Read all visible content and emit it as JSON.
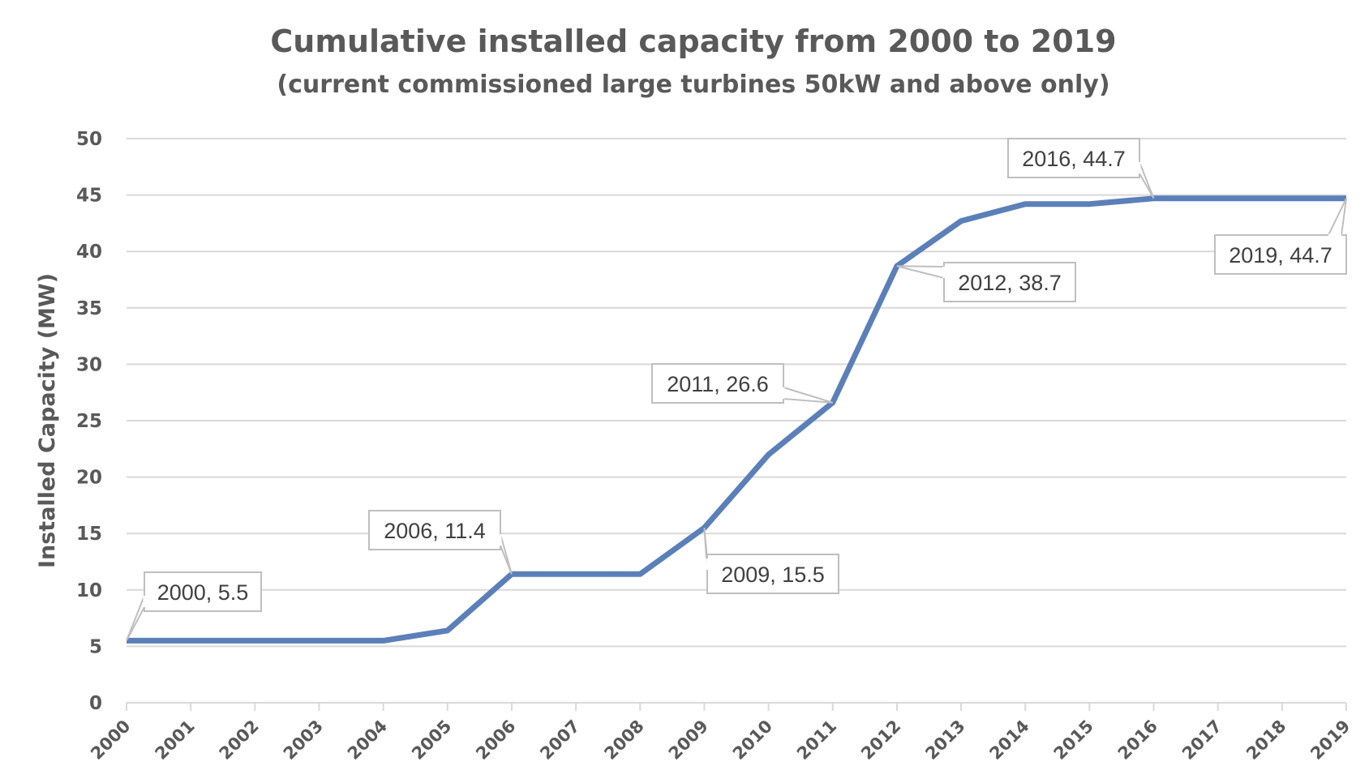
{
  "chart_data": {
    "type": "line",
    "title": "Cumulative installed capacity from 2000 to 2019",
    "subtitle": "(current commissioned large turbines 50kW and above only)",
    "ylabel": "Installed Capacity (MW)",
    "xlabel": "",
    "ylim": [
      0,
      50
    ],
    "yticks": [
      "0",
      "5",
      "10",
      "15",
      "20",
      "25",
      "30",
      "35",
      "40",
      "45",
      "50"
    ],
    "categories": [
      "2000",
      "2001",
      "2002",
      "2003",
      "2004",
      "2005",
      "2006",
      "2007",
      "2008",
      "2009",
      "2010",
      "2011",
      "2012",
      "2013",
      "2014",
      "2015",
      "2016",
      "2017",
      "2018",
      "2019"
    ],
    "series": [
      {
        "values": [
          5.5,
          5.5,
          5.5,
          5.5,
          5.5,
          6.4,
          11.4,
          11.4,
          11.4,
          15.5,
          22.0,
          26.6,
          38.7,
          42.7,
          44.2,
          44.2,
          44.7,
          44.7,
          44.7,
          44.7
        ],
        "color": "#5b80b9"
      }
    ],
    "data_labels": [
      {
        "category": "2000",
        "text": "2000, 5.5"
      },
      {
        "category": "2006",
        "text": "2006, 11.4"
      },
      {
        "category": "2009",
        "text": "2009, 15.5"
      },
      {
        "category": "2011",
        "text": "2011, 26.6"
      },
      {
        "category": "2012",
        "text": "2012, 38.7"
      },
      {
        "category": "2016",
        "text": "2016, 44.7"
      },
      {
        "category": "2019",
        "text": "2019, 44.7"
      }
    ],
    "grid": true,
    "legend": "none"
  }
}
